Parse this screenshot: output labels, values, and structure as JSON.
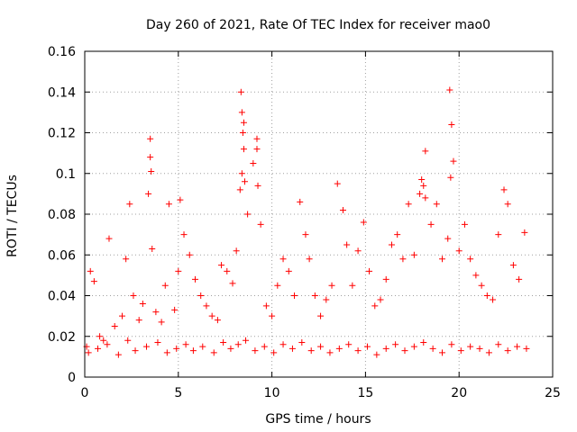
{
  "chart_data": {
    "type": "scatter",
    "title": "Day 260 of 2021, Rate Of TEC Index for receiver mao0",
    "xlabel": "GPS time / hours",
    "ylabel": "ROTI / TECUs",
    "xlim": [
      0,
      25
    ],
    "ylim": [
      0,
      0.16
    ],
    "xticks": [
      0,
      5,
      10,
      15,
      20,
      25
    ],
    "xtick_labels": [
      "0",
      "5",
      "10",
      "15",
      "20",
      "25"
    ],
    "yticks": [
      0,
      0.02,
      0.04,
      0.06,
      0.08,
      0.1,
      0.12,
      0.14,
      0.16
    ],
    "ytick_labels": [
      "0",
      "0.02",
      "0.04",
      "0.06",
      "0.08",
      "0.1",
      "0.12",
      "0.14",
      "0.16"
    ],
    "grid": true,
    "marker": "plus",
    "color": "#ff0000",
    "series": [
      {
        "name": "ROTI",
        "x": [
          0.1,
          0.3,
          0.5,
          0.8,
          1.0,
          1.3,
          1.6,
          2.0,
          2.2,
          2.4,
          2.6,
          2.9,
          3.1,
          3.4,
          3.5,
          3.6,
          3.8,
          4.1,
          4.3,
          4.5,
          4.8,
          5.0,
          5.1,
          5.3,
          5.6,
          5.9,
          6.2,
          6.5,
          6.8,
          7.1,
          7.3,
          7.6,
          7.9,
          8.1,
          8.3,
          8.4,
          8.5,
          8.7,
          9.0,
          9.2,
          9.4,
          9.7,
          10.0,
          10.3,
          10.6,
          10.9,
          11.2,
          11.5,
          11.8,
          12.0,
          12.3,
          12.6,
          12.9,
          13.2,
          13.5,
          13.8,
          14.0,
          14.3,
          14.6,
          14.9,
          15.2,
          15.5,
          15.8,
          16.1,
          16.4,
          16.7,
          17.0,
          17.3,
          17.6,
          17.9,
          18.0,
          18.2,
          18.5,
          18.8,
          19.1,
          19.4,
          19.5,
          19.7,
          20.0,
          20.3,
          20.6,
          20.9,
          21.2,
          21.5,
          21.8,
          22.1,
          22.4,
          22.6,
          22.9,
          23.2,
          23.5,
          0.2,
          0.7,
          1.2,
          1.8,
          2.3,
          2.7,
          3.3,
          3.9,
          4.4,
          4.9,
          5.4,
          5.8,
          6.3,
          6.9,
          7.4,
          7.8,
          8.2,
          8.6,
          9.1,
          9.6,
          10.1,
          10.6,
          11.1,
          11.6,
          12.1,
          12.6,
          13.1,
          13.6,
          14.1,
          14.6,
          15.1,
          15.6,
          16.1,
          16.6,
          17.1,
          17.6,
          18.1,
          18.6,
          19.1,
          19.6,
          20.1,
          20.6,
          21.1,
          21.6,
          22.1,
          22.6,
          23.1,
          23.6,
          8.35,
          8.4,
          8.45,
          8.5,
          8.55,
          3.5,
          3.55,
          19.6,
          19.55,
          18.1,
          18.2,
          9.2,
          9.25
        ],
        "y": [
          0.015,
          0.052,
          0.047,
          0.02,
          0.018,
          0.068,
          0.025,
          0.03,
          0.058,
          0.085,
          0.04,
          0.028,
          0.036,
          0.09,
          0.117,
          0.063,
          0.032,
          0.027,
          0.045,
          0.085,
          0.033,
          0.052,
          0.087,
          0.07,
          0.06,
          0.048,
          0.04,
          0.035,
          0.03,
          0.028,
          0.055,
          0.052,
          0.046,
          0.062,
          0.092,
          0.1,
          0.125,
          0.08,
          0.105,
          0.117,
          0.075,
          0.035,
          0.03,
          0.045,
          0.058,
          0.052,
          0.04,
          0.086,
          0.07,
          0.058,
          0.04,
          0.03,
          0.038,
          0.045,
          0.095,
          0.082,
          0.065,
          0.045,
          0.062,
          0.076,
          0.052,
          0.035,
          0.038,
          0.048,
          0.065,
          0.07,
          0.058,
          0.085,
          0.06,
          0.09,
          0.097,
          0.111,
          0.075,
          0.085,
          0.058,
          0.068,
          0.141,
          0.106,
          0.062,
          0.075,
          0.058,
          0.05,
          0.045,
          0.04,
          0.038,
          0.07,
          0.092,
          0.085,
          0.055,
          0.048,
          0.071,
          0.012,
          0.014,
          0.016,
          0.011,
          0.018,
          0.013,
          0.015,
          0.017,
          0.012,
          0.014,
          0.016,
          0.013,
          0.015,
          0.012,
          0.017,
          0.014,
          0.016,
          0.018,
          0.013,
          0.015,
          0.012,
          0.016,
          0.014,
          0.017,
          0.013,
          0.015,
          0.012,
          0.014,
          0.016,
          0.013,
          0.015,
          0.011,
          0.014,
          0.016,
          0.013,
          0.015,
          0.017,
          0.014,
          0.012,
          0.016,
          0.013,
          0.015,
          0.014,
          0.012,
          0.016,
          0.013,
          0.015,
          0.014,
          0.14,
          0.13,
          0.12,
          0.112,
          0.096,
          0.108,
          0.101,
          0.124,
          0.098,
          0.094,
          0.088,
          0.112,
          0.094
        ]
      }
    ]
  }
}
